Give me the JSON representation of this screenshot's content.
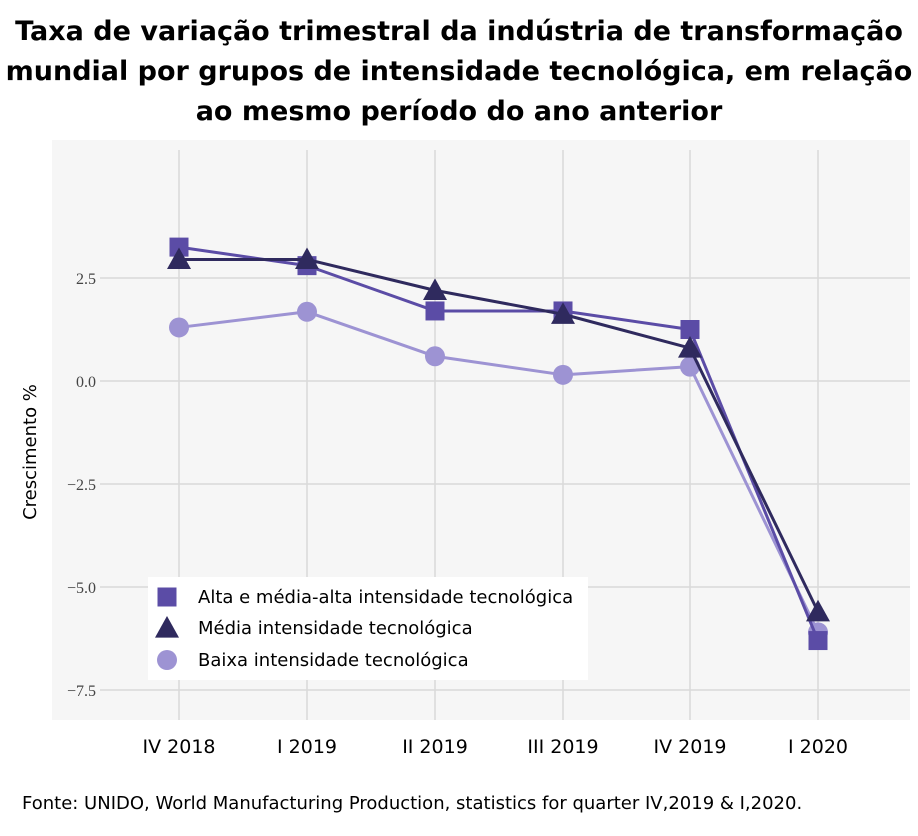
{
  "title_lines": [
    "Taxa de variação trimestral da indústria de transformação",
    "mundial por grupos de intensidade tecnológica, em relação",
    "ao mesmo período do ano anterior"
  ],
  "source": "Fonte: UNIDO, World Manufacturing Production, statistics for quarter IV,2019 & I,2020.",
  "chart_data": {
    "type": "line",
    "title": "Taxa de variação trimestral da indústria de transformação mundial por grupos de intensidade tecnológica, em relação ao mesmo período do ano anterior",
    "xlabel": "",
    "ylabel": "Crescimento %",
    "categories": [
      "IV 2018",
      "I 2019",
      "II 2019",
      "III 2019",
      "IV 2019",
      "I 2020"
    ],
    "yticks": [
      2.5,
      0.0,
      -2.5,
      -5.0,
      -7.5
    ],
    "ytick_labels": [
      "2.5",
      "0.0",
      "−2.5",
      "−5.0",
      "−7.5"
    ],
    "ylim": [
      -8.2,
      5.6
    ],
    "grid": true,
    "legend_position": "bottom-left",
    "series": [
      {
        "name": "Alta e média-alta intensidade tecnológica",
        "marker": "square",
        "color": "#5b4ca6",
        "values": [
          3.25,
          2.8,
          1.7,
          1.7,
          1.25,
          -6.3
        ]
      },
      {
        "name": "Média intensidade tecnológica",
        "marker": "triangle",
        "color": "#2f2a5e",
        "values": [
          2.95,
          2.95,
          2.2,
          1.62,
          0.8,
          -5.6
        ]
      },
      {
        "name": "Baixa intensidade tecnológica",
        "marker": "circle",
        "color": "#9d93d3",
        "values": [
          1.3,
          1.68,
          0.6,
          0.15,
          0.35,
          -6.1
        ]
      }
    ]
  }
}
